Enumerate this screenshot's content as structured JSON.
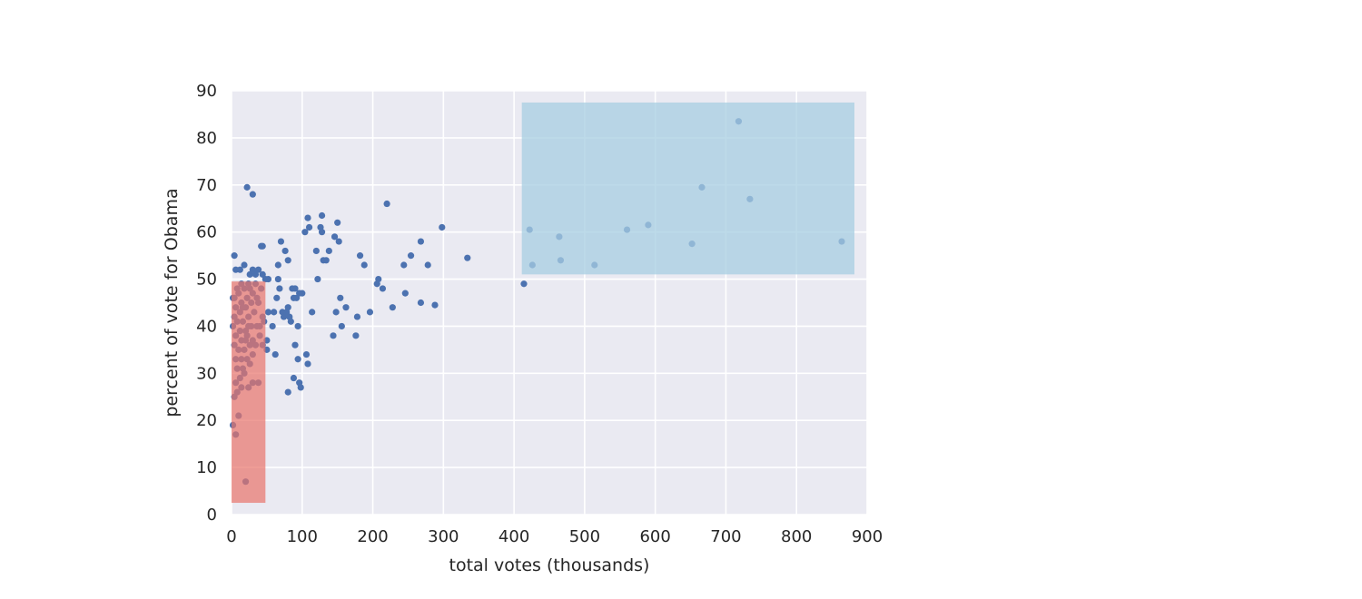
{
  "chart_data": {
    "type": "scatter",
    "title": "",
    "xlabel": "total votes (thousands)",
    "ylabel": "percent of vote for Obama",
    "xlim": [
      0,
      900
    ],
    "ylim": [
      0,
      90
    ],
    "xticks": [
      0,
      100,
      200,
      300,
      400,
      500,
      600,
      700,
      800,
      900
    ],
    "yticks": [
      0,
      10,
      20,
      30,
      40,
      50,
      60,
      70,
      80,
      90
    ],
    "grid": true,
    "background": "#eaeaf2",
    "point_color": "#4c72b0",
    "regions": [
      {
        "x": [
          0,
          48
        ],
        "y": [
          2.5,
          49.5
        ],
        "color": "#e8736b",
        "opacity": 0.7
      },
      {
        "x": [
          411,
          882
        ],
        "y": [
          51,
          87.5
        ],
        "color": "#a7cde1",
        "opacity": 0.75
      }
    ],
    "points": [
      [
        2,
        19
      ],
      [
        6,
        17
      ],
      [
        20,
        7
      ],
      [
        10,
        21
      ],
      [
        4,
        25
      ],
      [
        8,
        26
      ],
      [
        14,
        27
      ],
      [
        24,
        27
      ],
      [
        30,
        28
      ],
      [
        38,
        28
      ],
      [
        6,
        28
      ],
      [
        12,
        29
      ],
      [
        18,
        30
      ],
      [
        8,
        31
      ],
      [
        16,
        31
      ],
      [
        26,
        32
      ],
      [
        6,
        33
      ],
      [
        14,
        33
      ],
      [
        22,
        33
      ],
      [
        30,
        34
      ],
      [
        10,
        35
      ],
      [
        18,
        35
      ],
      [
        4,
        36
      ],
      [
        26,
        36
      ],
      [
        34,
        36
      ],
      [
        14,
        37
      ],
      [
        6,
        38
      ],
      [
        22,
        38
      ],
      [
        40,
        38
      ],
      [
        30,
        37
      ],
      [
        12,
        39
      ],
      [
        20,
        39
      ],
      [
        2,
        40
      ],
      [
        28,
        40
      ],
      [
        36,
        40
      ],
      [
        8,
        41
      ],
      [
        16,
        41
      ],
      [
        24,
        42
      ],
      [
        44,
        42
      ],
      [
        4,
        42
      ],
      [
        12,
        43
      ],
      [
        32,
        43
      ],
      [
        20,
        44
      ],
      [
        6,
        44
      ],
      [
        28,
        45
      ],
      [
        14,
        45
      ],
      [
        38,
        45
      ],
      [
        2,
        46
      ],
      [
        22,
        46
      ],
      [
        10,
        47
      ],
      [
        30,
        47
      ],
      [
        18,
        48
      ],
      [
        42,
        48
      ],
      [
        8,
        48
      ],
      [
        26,
        48
      ],
      [
        14,
        49
      ],
      [
        34,
        49
      ],
      [
        4,
        46
      ],
      [
        16,
        44
      ],
      [
        36,
        46
      ],
      [
        6,
        52
      ],
      [
        12,
        52
      ],
      [
        4,
        55
      ],
      [
        18,
        53
      ],
      [
        26,
        51
      ],
      [
        30,
        52
      ],
      [
        34,
        51
      ],
      [
        38,
        52
      ],
      [
        44,
        51
      ],
      [
        48,
        50
      ],
      [
        52,
        50
      ],
      [
        42,
        57
      ],
      [
        44,
        57
      ],
      [
        22,
        69.5
      ],
      [
        30,
        68
      ],
      [
        24,
        49
      ],
      [
        20,
        37
      ],
      [
        24,
        40
      ],
      [
        40,
        40
      ],
      [
        46,
        41
      ],
      [
        44,
        36
      ],
      [
        50,
        37
      ],
      [
        50,
        35
      ],
      [
        58,
        40
      ],
      [
        52,
        43
      ],
      [
        60,
        43
      ],
      [
        64,
        46
      ],
      [
        66,
        50
      ],
      [
        68,
        48
      ],
      [
        62,
        34
      ],
      [
        72,
        43
      ],
      [
        74,
        42
      ],
      [
        78,
        43
      ],
      [
        80,
        44
      ],
      [
        82,
        42
      ],
      [
        84,
        41
      ],
      [
        88,
        46
      ],
      [
        86,
        48
      ],
      [
        92,
        46
      ],
      [
        90,
        48
      ],
      [
        94,
        40
      ],
      [
        96,
        47
      ],
      [
        100,
        47
      ],
      [
        66,
        53
      ],
      [
        70,
        58
      ],
      [
        76,
        56
      ],
      [
        80,
        54
      ],
      [
        80,
        26
      ],
      [
        88,
        29
      ],
      [
        90,
        36
      ],
      [
        94,
        33
      ],
      [
        96,
        28
      ],
      [
        98,
        27
      ],
      [
        106,
        34
      ],
      [
        108,
        32
      ],
      [
        114,
        43
      ],
      [
        104,
        60
      ],
      [
        108,
        63
      ],
      [
        110,
        61
      ],
      [
        120,
        56
      ],
      [
        122,
        50
      ],
      [
        126,
        61
      ],
      [
        128,
        60
      ],
      [
        128,
        63.5
      ],
      [
        130,
        54
      ],
      [
        134,
        54
      ],
      [
        138,
        56
      ],
      [
        144,
        38
      ],
      [
        148,
        43
      ],
      [
        146,
        59
      ],
      [
        150,
        62
      ],
      [
        152,
        58
      ],
      [
        154,
        46
      ],
      [
        156,
        40
      ],
      [
        162,
        44
      ],
      [
        176,
        38
      ],
      [
        178,
        42
      ],
      [
        182,
        55
      ],
      [
        188,
        53
      ],
      [
        196,
        43
      ],
      [
        206,
        49
      ],
      [
        208,
        50
      ],
      [
        214,
        48
      ],
      [
        220,
        66
      ],
      [
        228,
        44
      ],
      [
        244,
        53
      ],
      [
        246,
        47
      ],
      [
        254,
        55
      ],
      [
        268,
        58
      ],
      [
        268,
        45
      ],
      [
        278,
        53
      ],
      [
        288,
        44.5
      ],
      [
        298,
        61
      ],
      [
        334,
        54.5
      ],
      [
        414,
        49
      ],
      [
        422,
        60.5
      ],
      [
        426,
        53
      ],
      [
        464,
        59
      ],
      [
        466,
        54
      ],
      [
        514,
        53
      ],
      [
        560,
        60.5
      ],
      [
        590,
        61.5
      ],
      [
        652,
        57.5
      ],
      [
        666,
        69.5
      ],
      [
        718,
        83.5
      ],
      [
        734,
        67
      ],
      [
        864,
        58
      ]
    ]
  }
}
